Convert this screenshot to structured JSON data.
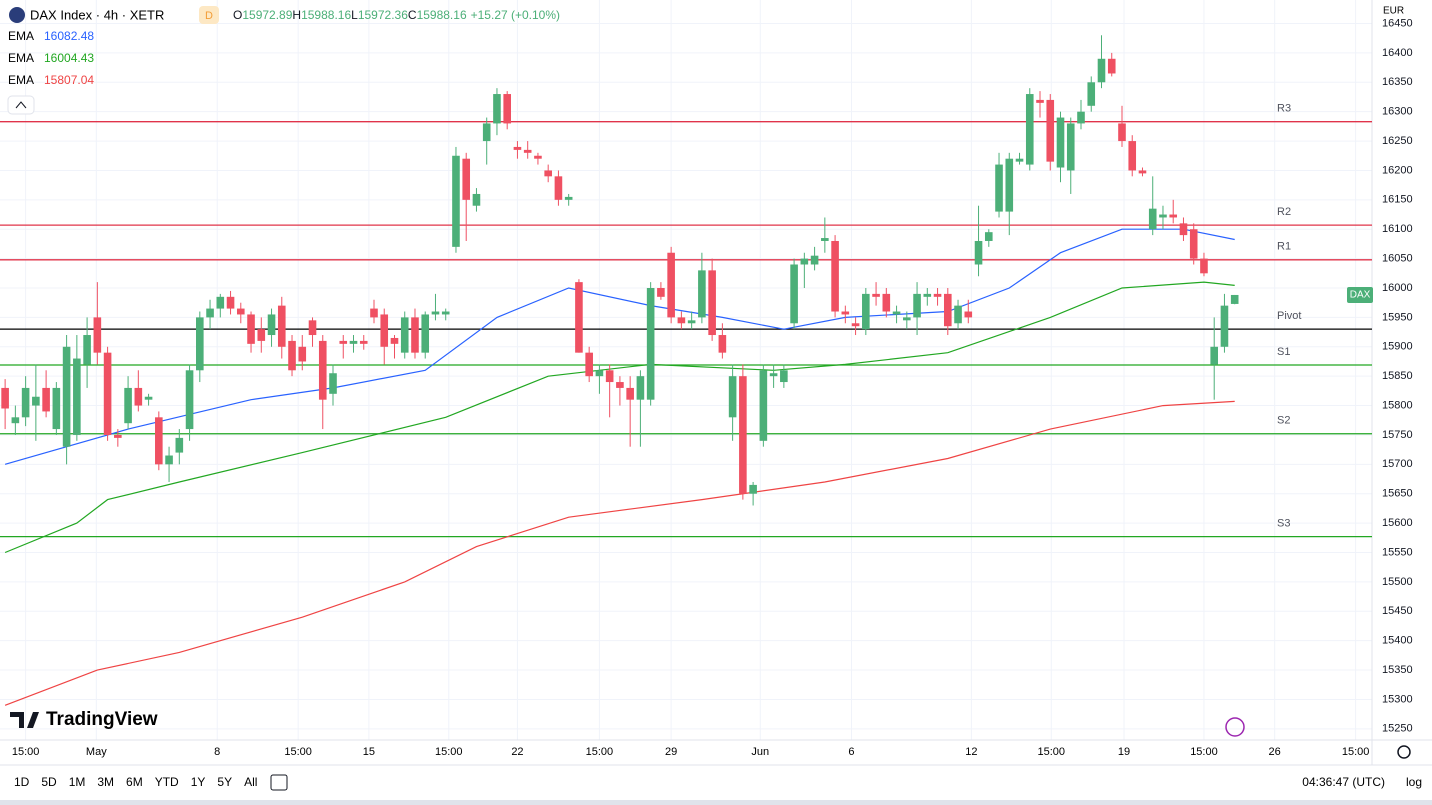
{
  "chart_data": {
    "type": "candlestick",
    "symbol": "DAX Index · 4h · XETR",
    "badge": "D",
    "legend_labels": [
      "O",
      "H",
      "L",
      "C"
    ],
    "change": "+15.27 (+0.10%)",
    "currency": "EUR",
    "price_tag": "DAX",
    "brand": "TradingView",
    "up_color": "#4caf78",
    "down_color": "#ef5062",
    "grid": true,
    "xlim": [
      -0.5,
      133.4
    ],
    "xticks": [
      {
        "value": 2,
        "label": "15:00"
      },
      {
        "value": 8.9,
        "label": "May"
      },
      {
        "value": 20.7,
        "label": "8"
      },
      {
        "value": 28.6,
        "label": "15:00"
      },
      {
        "value": 35.5,
        "label": "15"
      },
      {
        "value": 43.3,
        "label": "15:00"
      },
      {
        "value": 50,
        "label": "22"
      },
      {
        "value": 58,
        "label": "15:00"
      },
      {
        "value": 65,
        "label": "29"
      },
      {
        "value": 73.7,
        "label": "Jun"
      },
      {
        "value": 82.6,
        "label": "6"
      },
      {
        "value": 94.3,
        "label": "12"
      },
      {
        "value": 102.1,
        "label": "15:00"
      },
      {
        "value": 109.2,
        "label": "19"
      },
      {
        "value": 117,
        "label": "15:00"
      },
      {
        "value": 123.9,
        "label": "26"
      },
      {
        "value": 131.8,
        "label": "15:00"
      }
    ],
    "ylim": [
      15231,
      16490
    ],
    "yticks": [
      15250,
      15300,
      15350,
      15400,
      15450,
      15500,
      15550,
      15600,
      15650,
      15700,
      15750,
      15800,
      15850,
      15900,
      15950,
      16000,
      16050,
      16100,
      16150,
      16200,
      16250,
      16300,
      16350,
      16400,
      16450
    ],
    "ohlc": [
      [
        15830,
        15845,
        15760,
        15795
      ],
      [
        15770,
        15800,
        15750,
        15780
      ],
      [
        15780,
        15850,
        15765,
        15830
      ],
      [
        15800,
        15870,
        15740,
        15815
      ],
      [
        15830,
        15860,
        15780,
        15790
      ],
      [
        15760,
        15840,
        15750,
        15830
      ],
      [
        15730,
        15920,
        15700,
        15900
      ],
      [
        15750,
        15920,
        15740,
        15880
      ],
      [
        15870,
        15950,
        15830,
        15920
      ],
      [
        15950,
        16010,
        15870,
        15890
      ],
      [
        15890,
        15900,
        15740,
        15750
      ],
      [
        15750,
        15760,
        15730,
        15745
      ],
      [
        15770,
        15850,
        15760,
        15830
      ],
      [
        15830,
        15860,
        15790,
        15800
      ],
      [
        15810,
        15820,
        15800,
        15815
      ],
      [
        15780,
        15790,
        15690,
        15700
      ],
      [
        15700,
        15730,
        15670,
        15715
      ],
      [
        15720,
        15760,
        15700,
        15745
      ],
      [
        15760,
        15870,
        15740,
        15860
      ],
      [
        15860,
        15960,
        15840,
        15950
      ],
      [
        15950,
        15980,
        15930,
        15965
      ],
      [
        15965,
        15990,
        15950,
        15985
      ],
      [
        15985,
        15995,
        15955,
        15965
      ],
      [
        15965,
        15975,
        15940,
        15955
      ],
      [
        15955,
        15960,
        15890,
        15905
      ],
      [
        15930,
        15950,
        15890,
        15910
      ],
      [
        15920,
        15965,
        15900,
        15955
      ],
      [
        15970,
        15985,
        15880,
        15900
      ],
      [
        15910,
        15920,
        15850,
        15860
      ],
      [
        15900,
        15920,
        15860,
        15875
      ],
      [
        15945,
        15950,
        15900,
        15920
      ],
      [
        15910,
        15920,
        15760,
        15810
      ],
      [
        15820,
        15870,
        15800,
        15855
      ],
      [
        15910,
        15920,
        15880,
        15905
      ],
      [
        15905,
        15920,
        15890,
        15910
      ],
      [
        15910,
        15920,
        15895,
        15905
      ],
      [
        15965,
        15980,
        15940,
        15950
      ],
      [
        15955,
        15965,
        15870,
        15900
      ],
      [
        15915,
        15920,
        15880,
        15905
      ],
      [
        15890,
        15960,
        15880,
        15950
      ],
      [
        15950,
        15965,
        15880,
        15890
      ],
      [
        15890,
        15960,
        15880,
        15955
      ],
      [
        15955,
        15990,
        15945,
        15960
      ],
      [
        15955,
        15965,
        15945,
        15960
      ],
      [
        16070,
        16240,
        16060,
        16225
      ],
      [
        16220,
        16230,
        16080,
        16150
      ],
      [
        16140,
        16170,
        16130,
        16160
      ],
      [
        16250,
        16290,
        16210,
        16280
      ],
      [
        16280,
        16340,
        16260,
        16330
      ],
      [
        16330,
        16335,
        16270,
        16280
      ],
      [
        16240,
        16250,
        16220,
        16235
      ],
      [
        16235,
        16250,
        16220,
        16230
      ],
      [
        16225,
        16230,
        16210,
        16220
      ],
      [
        16200,
        16210,
        16180,
        16190
      ],
      [
        16190,
        16200,
        16140,
        16150
      ],
      [
        16150,
        16160,
        16140,
        16155
      ],
      [
        16010,
        16015,
        15890,
        15890
      ],
      [
        15890,
        15900,
        15840,
        15850
      ],
      [
        15850,
        15870,
        15820,
        15860
      ],
      [
        15860,
        15870,
        15780,
        15840
      ],
      [
        15840,
        15850,
        15800,
        15830
      ],
      [
        15830,
        15850,
        15730,
        15810
      ],
      [
        15810,
        15860,
        15730,
        15850
      ],
      [
        15810,
        16010,
        15800,
        16000
      ],
      [
        16000,
        16010,
        15980,
        15985
      ],
      [
        16060,
        16070,
        15940,
        15950
      ],
      [
        15950,
        15960,
        15930,
        15940
      ],
      [
        15940,
        15960,
        15930,
        15945
      ],
      [
        15950,
        16060,
        15940,
        16030
      ],
      [
        16030,
        16050,
        15910,
        15920
      ],
      [
        15920,
        15940,
        15880,
        15890
      ],
      [
        15780,
        15870,
        15740,
        15850
      ],
      [
        15850,
        15870,
        15640,
        15650
      ],
      [
        15650,
        15670,
        15630,
        15665
      ],
      [
        15740,
        15870,
        15730,
        15860
      ],
      [
        15850,
        15870,
        15830,
        15855
      ],
      [
        15840,
        15870,
        15830,
        15860
      ],
      [
        15940,
        16050,
        15930,
        16040
      ],
      [
        16040,
        16060,
        16000,
        16050
      ],
      [
        16040,
        16070,
        16030,
        16055
      ],
      [
        16080,
        16120,
        16060,
        16085
      ],
      [
        16080,
        16090,
        15950,
        15960
      ],
      [
        15960,
        15970,
        15940,
        15955
      ],
      [
        15940,
        15950,
        15920,
        15935
      ],
      [
        15930,
        16000,
        15920,
        15990
      ],
      [
        15990,
        16010,
        15970,
        15985
      ],
      [
        15990,
        16000,
        15950,
        15960
      ],
      [
        15955,
        15970,
        15940,
        15960
      ],
      [
        15945,
        15960,
        15930,
        15950
      ],
      [
        15950,
        16010,
        15920,
        15990
      ],
      [
        15985,
        16000,
        15970,
        15990
      ],
      [
        15990,
        16000,
        15970,
        15985
      ],
      [
        15990,
        16000,
        15920,
        15935
      ],
      [
        15940,
        15980,
        15930,
        15970
      ],
      [
        15960,
        15980,
        15940,
        15950
      ],
      [
        16040,
        16140,
        16020,
        16080
      ],
      [
        16080,
        16100,
        16070,
        16095
      ],
      [
        16130,
        16230,
        16120,
        16210
      ],
      [
        16130,
        16230,
        16090,
        16220
      ],
      [
        16215,
        16230,
        16210,
        16220
      ],
      [
        16210,
        16340,
        16200,
        16330
      ],
      [
        16320,
        16335,
        16290,
        16315
      ],
      [
        16320,
        16330,
        16200,
        16215
      ],
      [
        16205,
        16300,
        16180,
        16290
      ],
      [
        16200,
        16290,
        16160,
        16280
      ],
      [
        16280,
        16320,
        16270,
        16300
      ],
      [
        16310,
        16360,
        16300,
        16350
      ],
      [
        16350,
        16430,
        16340,
        16390
      ],
      [
        16390,
        16400,
        16360,
        16365
      ],
      [
        16280,
        16310,
        16240,
        16250
      ],
      [
        16250,
        16260,
        16190,
        16200
      ],
      [
        16200,
        16205,
        16190,
        16195
      ],
      [
        16100,
        16190,
        16090,
        16135
      ],
      [
        16120,
        16140,
        16100,
        16125
      ],
      [
        16125,
        16150,
        16110,
        16120
      ],
      [
        16110,
        16120,
        16080,
        16090
      ],
      [
        16100,
        16110,
        16040,
        16050
      ],
      [
        16050,
        16060,
        16020,
        16025
      ],
      [
        15870,
        15950,
        15810,
        15900
      ],
      [
        15900,
        15990,
        15890,
        15970
      ],
      [
        15972.89,
        15988.16,
        15972.36,
        15988.16
      ]
    ],
    "series": [
      {
        "name": "EMA",
        "color": "#2962ff",
        "x": [
          0,
          12,
          24,
          32,
          41,
          48,
          55,
          63,
          70,
          76,
          82,
          92,
          98,
          103,
          109,
          115,
          120
        ],
        "values": [
          15700,
          15760,
          15810,
          15830,
          15860,
          15950,
          16000,
          15970,
          15950,
          15930,
          15950,
          15960,
          16000,
          16060,
          16100,
          16100,
          16082.48
        ]
      },
      {
        "name": "EMA",
        "color": "#22a722",
        "x": [
          0,
          7,
          10,
          17,
          29,
          43,
          53,
          63,
          75,
          82,
          92,
          102,
          109,
          117,
          120
        ],
        "values": [
          15550,
          15600,
          15640,
          15670,
          15720,
          15780,
          15850,
          15870,
          15860,
          15870,
          15890,
          15950,
          16000,
          16010,
          16004.43
        ]
      },
      {
        "name": "EMA",
        "color": "#ef4444",
        "x": [
          0,
          9,
          17,
          29,
          39,
          46,
          55,
          68,
          80,
          92,
          102,
          113,
          120
        ],
        "values": [
          15290,
          15350,
          15380,
          15440,
          15500,
          15560,
          15610,
          15640,
          15670,
          15710,
          15760,
          15800,
          15807.04
        ]
      }
    ],
    "levels": [
      {
        "name": "R3",
        "value": 16283,
        "color": "#e0344a"
      },
      {
        "name": "R2",
        "value": 16107,
        "color": "#e0344a"
      },
      {
        "name": "R1",
        "value": 16048,
        "color": "#e0344a"
      },
      {
        "name": "Pivot",
        "value": 15930,
        "color": "#000000"
      },
      {
        "name": "S1",
        "value": 15869,
        "color": "#22a722"
      },
      {
        "name": "S2",
        "value": 15752,
        "color": "#22a722"
      },
      {
        "name": "S3",
        "value": 15577,
        "color": "#22a722"
      }
    ],
    "ranges": [
      "1D",
      "5D",
      "1M",
      "3M",
      "6M",
      "YTD",
      "1Y",
      "5Y",
      "All"
    ],
    "clock": "04:36:47 (UTC)",
    "scale_mode": "log"
  }
}
